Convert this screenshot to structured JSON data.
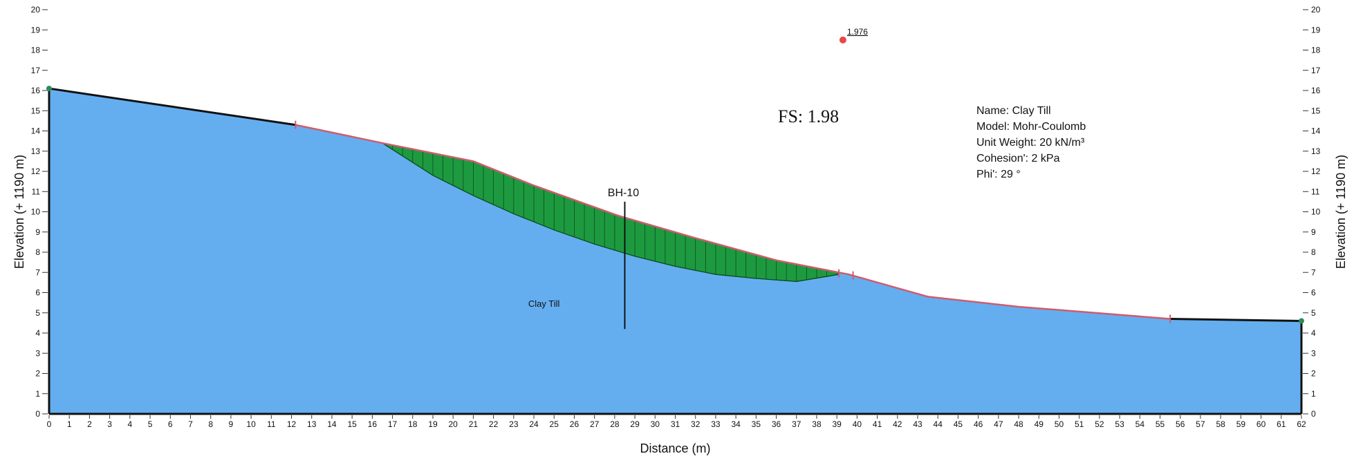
{
  "chart_data": {
    "type": "slope-stability-section",
    "xlabel": "Distance (m)",
    "ylabel_left": "Elevation (+ 1190 m)",
    "ylabel_right": "Elevation (+ 1190 m)",
    "xlim": [
      0,
      62
    ],
    "ylim": [
      0,
      20
    ],
    "x_ticks": [
      0,
      1,
      2,
      3,
      4,
      5,
      6,
      7,
      8,
      9,
      10,
      11,
      12,
      13,
      14,
      15,
      16,
      17,
      18,
      19,
      20,
      21,
      22,
      23,
      24,
      25,
      26,
      27,
      28,
      29,
      30,
      31,
      32,
      33,
      34,
      35,
      36,
      37,
      38,
      39,
      40,
      41,
      42,
      43,
      44,
      45,
      46,
      47,
      48,
      49,
      50,
      51,
      52,
      53,
      54,
      55,
      56,
      57,
      58,
      59,
      60,
      61,
      62
    ],
    "y_ticks": [
      0,
      1,
      2,
      3,
      4,
      5,
      6,
      7,
      8,
      9,
      10,
      11,
      12,
      13,
      14,
      15,
      16,
      17,
      18,
      19,
      20
    ],
    "ground_surface": [
      [
        0,
        16.1
      ],
      [
        12.2,
        14.3
      ],
      [
        16.5,
        13.4
      ],
      [
        21,
        12.5
      ],
      [
        24,
        11.3
      ],
      [
        28.2,
        9.8
      ],
      [
        32,
        8.7
      ],
      [
        36,
        7.6
      ],
      [
        39.6,
        6.9
      ],
      [
        43.5,
        5.8
      ],
      [
        48,
        5.3
      ],
      [
        55.5,
        4.7
      ],
      [
        62,
        4.6
      ]
    ],
    "slip_surface": [
      [
        16.5,
        13.4
      ],
      [
        19,
        11.8
      ],
      [
        21,
        10.8
      ],
      [
        23,
        9.9
      ],
      [
        25,
        9.1
      ],
      [
        27,
        8.4
      ],
      [
        29,
        7.8
      ],
      [
        31,
        7.3
      ],
      [
        33,
        6.9
      ],
      [
        35,
        6.7
      ],
      [
        37,
        6.55
      ],
      [
        39.1,
        6.9
      ]
    ],
    "failure_mass_x_range": [
      16.5,
      39.1
    ],
    "color_soil": "#64aef0",
    "color_failure": "#1d9a3f",
    "color_boundary": "#111111",
    "color_surface_line": "#cf5c6c",
    "color_center": "#e84848",
    "borehole": {
      "label": "BH-10",
      "x": 28.5,
      "top": 10.5,
      "bottom": 4.2
    },
    "slip_center": {
      "x": 39.3,
      "y": 18.5,
      "label": "1.976"
    },
    "material_label": {
      "text": "Clay Till",
      "x": 24.5,
      "y": 5.3
    },
    "factor_of_safety": "FS: 1.98",
    "material_properties": [
      "Name: Clay Till",
      "Model: Mohr-Coulomb",
      "Unit Weight: 20 kN/m³",
      "Cohesion': 2 kPa",
      "Phi': 29 °"
    ]
  }
}
